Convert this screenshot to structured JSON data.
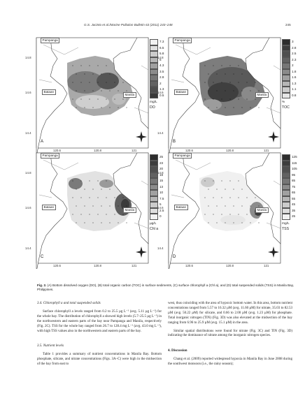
{
  "header": {
    "running_head": "G.S. Jacinto et al./Marine Pollution Bulletin 63 (2011) 243–248",
    "page_number": "245"
  },
  "maps": {
    "place_labels": {
      "pampanga": "Pampanga",
      "bataan": "Bataan",
      "manila": "Manila"
    },
    "lat_ticks": [
      "14.8",
      "14.6",
      "14.4"
    ],
    "lon_ticks": [
      "120.6",
      "120.8",
      "121"
    ],
    "panels": [
      {
        "id": "A",
        "letter": "A",
        "variable": "DO",
        "unit": "mg/L",
        "ticks": [
          "7.3",
          "6.5",
          "5.8",
          "5",
          "4.3",
          "3.5",
          "2.8",
          "2",
          "1.3",
          "0.5"
        ],
        "colors": [
          "#f2f2f2",
          "#e0e0e0",
          "#cbcbcb",
          "#b6b6b6",
          "#a0a0a0",
          "#8b8b8b",
          "#767676",
          "#626262",
          "#4e4e4e",
          "#3a3a3a"
        ]
      },
      {
        "id": "B",
        "letter": "B",
        "variable": "TOC",
        "unit": "%",
        "ticks": [
          "3",
          "2.8",
          "2.5",
          "2.3",
          "2",
          "1.8",
          "1.6",
          "1.3",
          "1.1",
          "0.8"
        ],
        "colors": [
          "#2d2d2d",
          "#3d3d3d",
          "#4f4f4f",
          "#626262",
          "#767676",
          "#8b8b8b",
          "#a0a0a0",
          "#b6b6b6",
          "#cbcbcb",
          "#e6e6e6"
        ]
      },
      {
        "id": "C",
        "letter": "C",
        "variable": "Chl a",
        "unit": "µg/L",
        "ticks": [
          "25",
          "23",
          "20",
          "18",
          "15",
          "13",
          "10",
          "7.5",
          "5",
          "2.5",
          "0"
        ],
        "colors": [
          "#2d2d2d",
          "#3d3d3d",
          "#4f4f4f",
          "#626262",
          "#767676",
          "#8b8b8b",
          "#a0a0a0",
          "#b6b6b6",
          "#cbcbcb",
          "#dedede",
          "#f2f2f2"
        ]
      },
      {
        "id": "D",
        "letter": "D",
        "variable": "TSS",
        "unit": "mg/L",
        "ticks": [
          "125",
          "115",
          "105",
          "95",
          "85",
          "75",
          "65",
          "55",
          "45",
          "35",
          "25"
        ],
        "colors": [
          "#2d2d2d",
          "#3d3d3d",
          "#4f4f4f",
          "#626262",
          "#767676",
          "#8b8b8b",
          "#a0a0a0",
          "#b6b6b6",
          "#cbcbcb",
          "#dedede",
          "#f2f2f2"
        ]
      }
    ]
  },
  "caption": {
    "fig_label": "Fig. 2.",
    "text": " (A) Bottom dissolved oxygen (DO), (B) total organic carbon (TOC) in surface sediments, (C) surface chlorophyll a (Chl a), and (D) total suspended solids (TSS) in Manila Bay, Philippines."
  },
  "left_column": {
    "heading_1": "3.4. Chlorophyll a and total suspended solids",
    "para_1": "Surface chlorophyll a levels ranged from 0.2 to 25.5 µg L⁻¹ (avg. 5.11 µg L⁻¹) for the whole bay. The distribution of chlorophyll a showed high levels (5.7–25.5 µg L⁻¹) in the northwestern and eastern parts of the bay near Pampanga and Manila, respectively (Fig. 2C). TSS for the whole bay ranged from 26.7 to 128.4 mg L⁻¹ (avg. 43.0 mg L⁻¹), with high TSS values also in the northwestern and eastern parts of the bay.",
    "heading_2": "3.5. Nutrient levels",
    "para_2": "Table 1 provides a summary of nutrient concentrations in Manila Bay. Bottom phosphate, silicate, and nitrate concentrations (Figs. 3A–C) were high in the midsection of the bay from east to"
  },
  "right_column": {
    "para_1": "west, thus coinciding with the area of hypoxic bottom water. In this area, bottom nutrient concentrations ranged from 5.57 to 16.32 µM (avg. 11.60 µM) for nitrate, 35.03 to 82.53 µM (avg. 50.22 µM) for silicate, and 0.66 to 2.00 µM (avg. 1.23 µM) for phosphate. Total inorganic nitrogen (TIN) (Fig. 3D) was also elevated at the midsection of the bay ranging from 6.96 to 25.9 µM (avg. 15.1 µM) in the area.",
    "para_2": "Similar spatial distributions were found for nitrate (Fig. 3C) and TIN (Fig. 3D) indicating the dominance of nitrate among the inorganic nitrogen species.",
    "heading": "4. Discussion",
    "para_3": "Chang et al. (2009) reported widespread hypoxia in Manila Bay in June 2008 during the southwest monsoon (i.e., the rainy season);"
  }
}
